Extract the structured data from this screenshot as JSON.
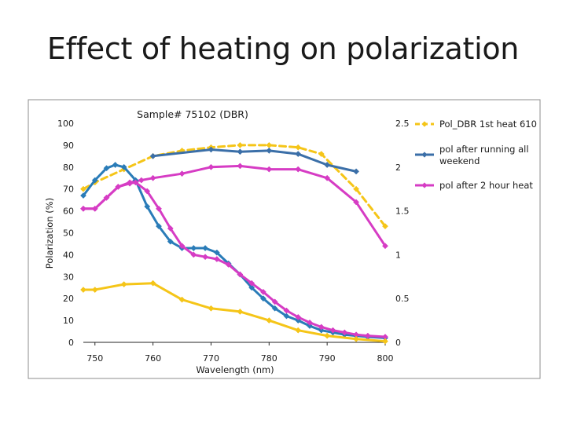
{
  "slide": {
    "title": "Effect of heating on polarization"
  },
  "chart_data": {
    "type": "line",
    "title": "Sample# 75102 (DBR)",
    "xlabel": "Wavelength (nm)",
    "ylabel": "Polarization (%)",
    "xlim": [
      748,
      800
    ],
    "ylim": [
      0,
      100
    ],
    "y2lim": [
      0,
      2.5
    ],
    "grid": false,
    "legend_position": "right",
    "x_ticks": [
      750,
      760,
      770,
      780,
      790,
      800
    ],
    "x_tick_labels": [
      "750",
      "760",
      "770",
      "780",
      "790",
      "800"
    ],
    "y_ticks": [
      0,
      10,
      20,
      30,
      40,
      50,
      60,
      70,
      80,
      90,
      100
    ],
    "y_tick_labels": [
      "0",
      "10",
      "20",
      "30",
      "40",
      "50",
      "60",
      "70",
      "80",
      "90",
      "100"
    ],
    "y2_ticks": [
      0,
      0.5,
      1,
      1.5,
      2,
      2.5
    ],
    "y2_tick_labels": [
      "0",
      "0.5",
      "1",
      "1.5",
      "2",
      "2.5"
    ],
    "series": [
      {
        "name": "Pol_DBR 1st heat 610",
        "color": "#f5c518",
        "dashed": true,
        "marker": "diamond",
        "x": [
          748,
          750,
          755,
          760,
          765,
          770,
          775,
          780,
          785,
          789,
          795,
          800
        ],
        "y": [
          70,
          73,
          79,
          85,
          87.5,
          89,
          90,
          90,
          89,
          86,
          70,
          53
        ]
      },
      {
        "name": "pol after running all weekend",
        "color": "#3b6fa8",
        "dashed": false,
        "marker": "diamond",
        "x": [
          760,
          770,
          775,
          780,
          785,
          790,
          795
        ],
        "y": [
          85,
          88,
          87,
          87.5,
          86,
          81,
          78
        ]
      },
      {
        "name": "pol after 2 hour heat",
        "color": "#d63cc4",
        "dashed": false,
        "marker": "diamond",
        "x": [
          748,
          750,
          752,
          754,
          756,
          758,
          760,
          765,
          770,
          775,
          780,
          785,
          790,
          795,
          800
        ],
        "y": [
          61,
          61,
          66,
          71,
          73,
          74,
          75,
          77,
          80,
          80.5,
          79,
          79,
          75,
          64,
          44
        ]
      },
      {
        "name": "",
        "color": "#2a7cb8",
        "dashed": false,
        "marker": "diamond",
        "x": [
          748,
          750,
          752,
          753.5,
          755,
          757,
          759,
          761,
          763,
          765,
          767,
          769,
          771,
          773,
          775,
          777,
          779,
          781,
          783,
          785,
          787,
          789,
          791,
          793,
          795,
          797,
          800
        ],
        "y": [
          67,
          74,
          79.5,
          81,
          80,
          74,
          62,
          53,
          46,
          43,
          43,
          43,
          41,
          36,
          31,
          25,
          20,
          15.5,
          12,
          10,
          7.5,
          5.5,
          4.5,
          3.5,
          3,
          2.5,
          2
        ]
      },
      {
        "name": "",
        "color": "#d63cc4",
        "dashed": false,
        "marker": "diamond",
        "x": [
          748,
          750,
          752,
          754,
          756,
          757,
          759,
          761,
          763,
          765,
          767,
          769,
          771,
          773,
          775,
          777,
          779,
          781,
          783,
          785,
          787,
          789,
          791,
          793,
          795,
          797,
          800
        ],
        "y": [
          61,
          61,
          66,
          71,
          72.5,
          73,
          69,
          61,
          52,
          44,
          40,
          39,
          38,
          35.5,
          31,
          27,
          23,
          18.5,
          14.5,
          11.5,
          9,
          7,
          5.5,
          4.5,
          3.5,
          3,
          2.5
        ]
      },
      {
        "name": "",
        "color": "#f5c518",
        "dashed": false,
        "marker": "diamond",
        "x": [
          748,
          750,
          755,
          760,
          765,
          770,
          775,
          780,
          785,
          790,
          795,
          800
        ],
        "y": [
          24,
          24,
          26.5,
          27,
          19.5,
          15.5,
          14,
          10,
          5.5,
          3,
          1.5,
          0.5
        ]
      }
    ]
  }
}
